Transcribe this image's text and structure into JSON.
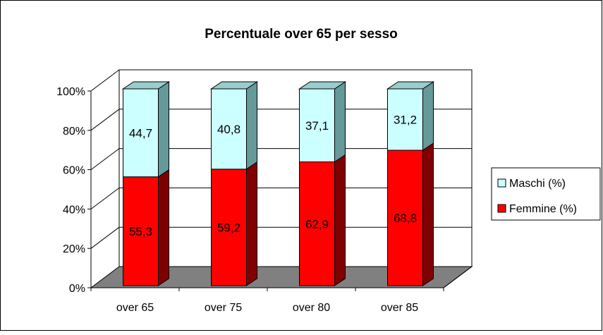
{
  "chart_data": {
    "type": "bar",
    "stacked": true,
    "three_d": true,
    "title": "Percentuale over 65 per sesso",
    "xlabel": "",
    "ylabel": "",
    "categories": [
      "over 65",
      "over 75",
      "over 80",
      "over 85"
    ],
    "series": [
      {
        "name": "Femmine (%)",
        "values": [
          55.3,
          59.2,
          62.9,
          68.8
        ],
        "labels": [
          "55,3",
          "59,2",
          "62,9",
          "68,8"
        ],
        "color": "#ff0000"
      },
      {
        "name": "Maschi (%)",
        "values": [
          44.7,
          40.8,
          37.1,
          31.2
        ],
        "labels": [
          "44,7",
          "40,8",
          "37,1",
          "31,2"
        ],
        "color": "#ccffff"
      }
    ],
    "ylim": [
      0,
      100
    ],
    "y_ticks": [
      "0%",
      "20%",
      "40%",
      "60%",
      "80%",
      "100%"
    ],
    "grid": true,
    "legend_position": "right",
    "floor_color": "#808080"
  }
}
